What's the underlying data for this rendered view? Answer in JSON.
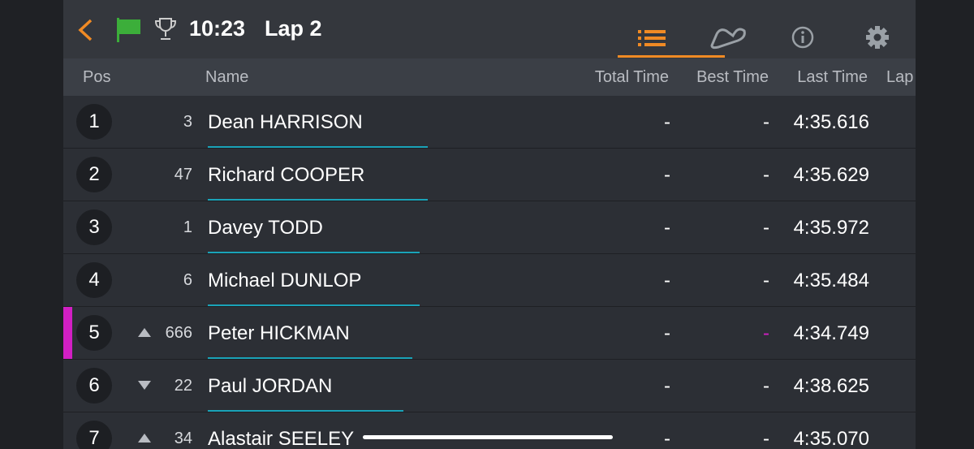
{
  "header": {
    "time": "10:23",
    "lap": "Lap 2"
  },
  "table": {
    "columns": [
      "Pos",
      "Name",
      "Total Time",
      "Best Time",
      "Last Time",
      "Lap"
    ],
    "rows": [
      {
        "pos": "1",
        "number": "3",
        "name": "Dean HARRISON",
        "total_time": "-",
        "best_time": "-",
        "last_time": "4:35.616"
      },
      {
        "pos": "2",
        "number": "47",
        "name": "Richard COOPER",
        "total_time": "-",
        "best_time": "-",
        "last_time": "4:35.629"
      },
      {
        "pos": "3",
        "number": "1",
        "name": "Davey TODD",
        "total_time": "-",
        "best_time": "-",
        "last_time": "4:35.972"
      },
      {
        "pos": "4",
        "number": "6",
        "name": "Michael DUNLOP",
        "total_time": "-",
        "best_time": "-",
        "last_time": "4:35.484"
      },
      {
        "pos": "5",
        "number": "666",
        "name": "Peter HICKMAN",
        "total_time": "-",
        "best_time": "-",
        "last_time": "4:34.749",
        "trend": "up",
        "highlight": true
      },
      {
        "pos": "6",
        "number": "22",
        "name": "Paul JORDAN",
        "total_time": "-",
        "best_time": "-",
        "last_time": "4:38.625",
        "trend": "down"
      },
      {
        "pos": "7",
        "number": "34",
        "name": "Alastair SEELEY",
        "total_time": "-",
        "best_time": "-",
        "last_time": "4:35.070",
        "trend": "up"
      }
    ]
  }
}
